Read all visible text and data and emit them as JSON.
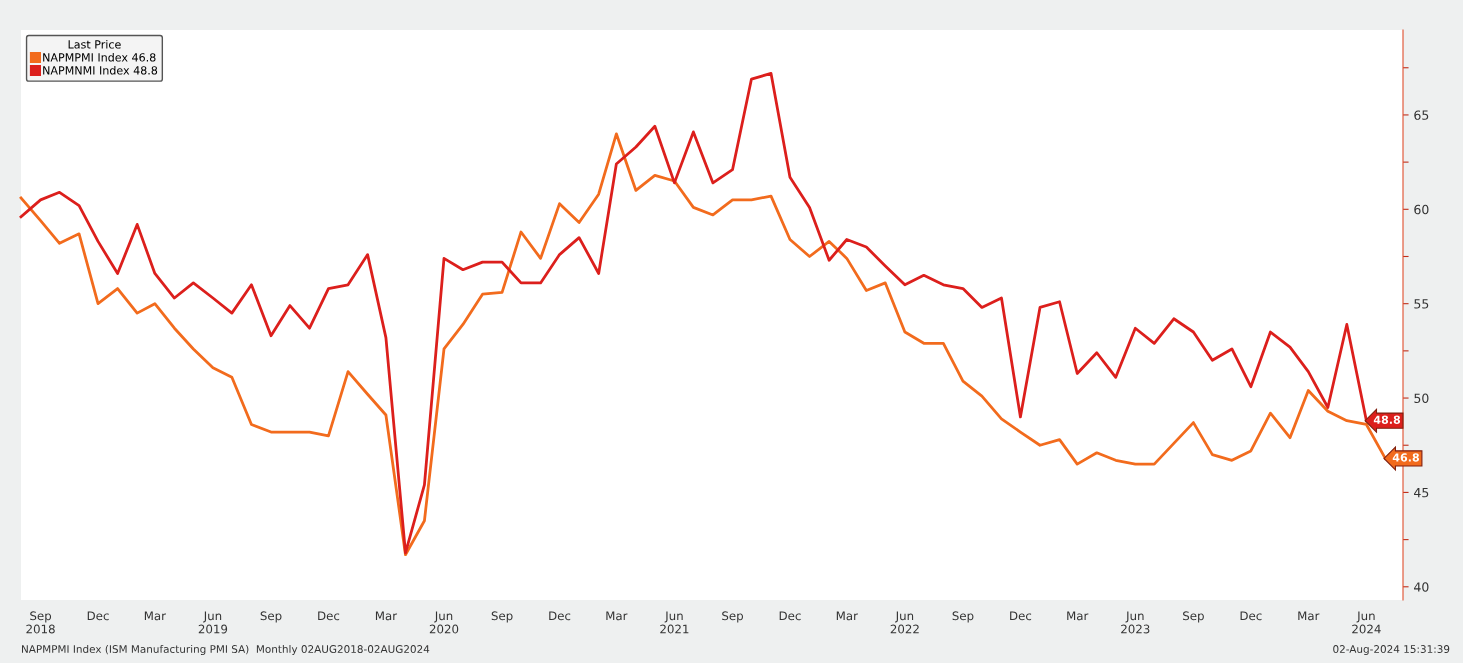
{
  "chart_data": {
    "type": "line",
    "x": [
      "2018-08",
      "2018-09",
      "2018-10",
      "2018-11",
      "2018-12",
      "2019-01",
      "2019-02",
      "2019-03",
      "2019-04",
      "2019-05",
      "2019-06",
      "2019-07",
      "2019-08",
      "2019-09",
      "2019-10",
      "2019-11",
      "2019-12",
      "2020-01",
      "2020-02",
      "2020-03",
      "2020-04",
      "2020-05",
      "2020-06",
      "2020-07",
      "2020-08",
      "2020-09",
      "2020-10",
      "2020-11",
      "2020-12",
      "2021-01",
      "2021-02",
      "2021-03",
      "2021-04",
      "2021-05",
      "2021-06",
      "2021-07",
      "2021-08",
      "2021-09",
      "2021-10",
      "2021-11",
      "2021-12",
      "2022-01",
      "2022-02",
      "2022-03",
      "2022-04",
      "2022-05",
      "2022-06",
      "2022-07",
      "2022-08",
      "2022-09",
      "2022-10",
      "2022-11",
      "2022-12",
      "2023-01",
      "2023-02",
      "2023-03",
      "2023-04",
      "2023-05",
      "2023-06",
      "2023-07",
      "2023-08",
      "2023-09",
      "2023-10",
      "2023-11",
      "2023-12",
      "2024-01",
      "2024-02",
      "2024-03",
      "2024-04",
      "2024-05",
      "2024-06",
      "2024-07"
    ],
    "series": [
      {
        "name": "NAPMPMI Index 46.8",
        "color": "#f26b1d",
        "values": [
          60.6,
          59.4,
          58.2,
          58.7,
          55.0,
          55.8,
          54.5,
          55.0,
          53.7,
          52.6,
          51.6,
          51.1,
          48.6,
          48.2,
          48.2,
          48.2,
          48.0,
          51.4,
          50.2,
          49.1,
          41.7,
          43.5,
          52.6,
          53.9,
          55.5,
          55.6,
          58.8,
          57.4,
          60.3,
          59.3,
          60.8,
          64.0,
          61.0,
          61.8,
          61.5,
          60.1,
          59.7,
          60.5,
          60.5,
          60.7,
          58.4,
          57.5,
          58.3,
          57.4,
          55.7,
          56.1,
          53.5,
          52.9,
          52.9,
          50.9,
          50.1,
          48.9,
          48.2,
          47.5,
          47.8,
          46.5,
          47.1,
          46.7,
          46.5,
          46.5,
          47.6,
          48.7,
          47.0,
          46.7,
          47.2,
          49.2,
          47.9,
          50.4,
          49.3,
          48.8,
          48.6,
          46.8
        ],
        "value_labels": [
          null,
          null,
          null,
          null,
          null,
          null,
          null,
          null,
          null,
          null,
          null,
          null,
          null,
          null,
          null,
          null,
          null,
          null,
          null,
          null,
          null,
          null,
          null,
          null,
          null,
          null,
          null,
          null,
          null,
          null,
          null,
          null,
          null,
          null,
          null,
          null,
          null,
          null,
          null,
          null,
          null,
          null,
          null,
          null,
          null,
          null,
          null,
          null,
          null,
          null,
          null,
          null,
          null,
          null,
          null,
          null,
          null,
          null,
          null,
          null,
          null,
          null,
          null,
          null,
          null,
          null,
          null,
          null,
          null,
          null,
          null,
          "46.8"
        ]
      },
      {
        "name": "NAPMNMI Index 48.8",
        "color": "#dc1f1c",
        "values": [
          59.6,
          60.5,
          60.9,
          60.2,
          58.3,
          56.6,
          59.2,
          56.6,
          55.3,
          56.1,
          55.3,
          54.5,
          56.0,
          53.3,
          54.9,
          53.7,
          55.8,
          56.0,
          57.6,
          53.2,
          41.8,
          45.4,
          57.4,
          56.8,
          57.2,
          57.2,
          56.1,
          56.1,
          57.6,
          58.5,
          56.6,
          62.4,
          63.3,
          64.4,
          61.4,
          64.1,
          61.4,
          62.1,
          66.9,
          67.2,
          61.7,
          60.1,
          57.3,
          58.4,
          58.0,
          57.0,
          56.0,
          56.5,
          56.0,
          55.8,
          54.8,
          55.3,
          49.0,
          54.8,
          55.1,
          51.3,
          52.4,
          51.1,
          53.7,
          52.9,
          54.2,
          53.5,
          52.0,
          52.6,
          50.6,
          53.5,
          52.7,
          51.4,
          49.5,
          53.9,
          48.8,
          null
        ],
        "value_labels": [
          null,
          null,
          null,
          null,
          null,
          null,
          null,
          null,
          null,
          null,
          null,
          null,
          null,
          null,
          null,
          null,
          null,
          null,
          null,
          null,
          null,
          null,
          null,
          null,
          null,
          null,
          null,
          null,
          null,
          null,
          null,
          null,
          null,
          null,
          null,
          null,
          null,
          null,
          null,
          null,
          null,
          null,
          null,
          null,
          null,
          null,
          null,
          null,
          null,
          null,
          null,
          null,
          null,
          null,
          null,
          null,
          null,
          null,
          null,
          null,
          null,
          null,
          null,
          null,
          null,
          null,
          null,
          null,
          null,
          null,
          "48.8",
          null
        ]
      }
    ],
    "xlim": [
      "2018-08-01",
      "2024-07-29"
    ],
    "xticks": [
      {
        "value": "2018-09-01",
        "label": "Sep\n2018"
      },
      {
        "value": "2018-12-01",
        "label": "Dec"
      },
      {
        "value": "2019-03-01",
        "label": "Mar"
      },
      {
        "value": "2019-06-01",
        "label": "Jun\n2019"
      },
      {
        "value": "2019-09-01",
        "label": "Sep"
      },
      {
        "value": "2019-12-01",
        "label": "Dec"
      },
      {
        "value": "2020-03-01",
        "label": "Mar"
      },
      {
        "value": "2020-06-01",
        "label": "Jun\n2020"
      },
      {
        "value": "2020-09-01",
        "label": "Sep"
      },
      {
        "value": "2020-12-01",
        "label": "Dec"
      },
      {
        "value": "2021-03-01",
        "label": "Mar"
      },
      {
        "value": "2021-06-01",
        "label": "Jun\n2021"
      },
      {
        "value": "2021-09-01",
        "label": "Sep"
      },
      {
        "value": "2021-12-01",
        "label": "Dec"
      },
      {
        "value": "2022-03-01",
        "label": "Mar"
      },
      {
        "value": "2022-06-01",
        "label": "Jun\n2022"
      },
      {
        "value": "2022-09-01",
        "label": "Sep"
      },
      {
        "value": "2022-12-01",
        "label": "Dec"
      },
      {
        "value": "2023-03-01",
        "label": "Mar"
      },
      {
        "value": "2023-06-01",
        "label": "Jun\n2023"
      },
      {
        "value": "2023-09-01",
        "label": "Sep"
      },
      {
        "value": "2023-12-01",
        "label": "Dec"
      },
      {
        "value": "2024-03-01",
        "label": "Mar"
      },
      {
        "value": "2024-06-01",
        "label": "Jun\n2024"
      }
    ],
    "ylim": [
      39.3,
      69.5
    ],
    "yticks": [
      40,
      {
        "value": 42.5,
        "label": null
      },
      45,
      {
        "value": 47.5,
        "label": null
      },
      50,
      {
        "value": 52.5,
        "label": null
      },
      55,
      {
        "value": 57.5,
        "label": null
      },
      60,
      {
        "value": 62.5,
        "label": null
      },
      65,
      {
        "value": 67.5,
        "label": null
      }
    ],
    "legend": "top left",
    "legend_title": "Last Price",
    "grid": false,
    "marker": "none",
    "line_style": "solid",
    "annotations": [
      "NAPMPMI Index (ISM Manufacturing PMI SA)  Monthly 02AUG2018-02AUG2024",
      "02-Aug-2024 15:31:39"
    ]
  }
}
